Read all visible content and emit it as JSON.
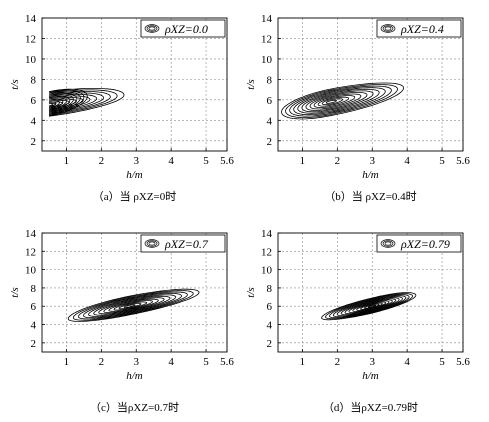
{
  "chart_data": [
    {
      "type": "contour",
      "caption": "（a）当 ρXZ=0时",
      "legend": "ρXZ=0.0",
      "rho": 0.0,
      "xlabel": "h/m",
      "ylabel": "t/s",
      "xlim": [
        0.3,
        5.6
      ],
      "ylim": [
        1,
        14
      ],
      "xticks": [
        "1",
        "2",
        "3",
        "4",
        "5",
        "5.6"
      ],
      "yticks": [
        "2",
        "4",
        "6",
        "8",
        "10",
        "12",
        "14"
      ],
      "grid": true,
      "legend_position": "top-right",
      "peak": {
        "h": 0.5,
        "t": 5.5
      },
      "outer_extent": {
        "h_max": 2.8,
        "t_min": 3.8,
        "t_max": 7.3
      }
    },
    {
      "type": "contour",
      "caption": "（b）当 ρXZ=0.4时",
      "legend": "ρXZ=0.4",
      "rho": 0.4,
      "xlabel": "h/m",
      "ylabel": "t/s",
      "xlim": [
        0.3,
        5.6
      ],
      "ylim": [
        1,
        14
      ],
      "xticks": [
        "1",
        "2",
        "3",
        "4",
        "5",
        "5.6"
      ],
      "yticks": [
        "2",
        "4",
        "6",
        "8",
        "10",
        "12",
        "14"
      ],
      "grid": true,
      "legend_position": "top-right",
      "peak": {
        "h": 1.8,
        "t": 5.8
      },
      "outer_extent": {
        "h_min": 0.4,
        "h_max": 4.0,
        "t_min": 3.6,
        "t_max": 8.4
      }
    },
    {
      "type": "contour",
      "caption": "（c）当ρXZ=0.7时",
      "legend": "ρXZ=0.7",
      "rho": 0.7,
      "xlabel": "h/m",
      "ylabel": "t/s",
      "xlim": [
        0.3,
        5.6
      ],
      "ylim": [
        1,
        14
      ],
      "xticks": [
        "1",
        "2",
        "3",
        "4",
        "5",
        "5.6"
      ],
      "yticks": [
        "2",
        "4",
        "6",
        "8",
        "10",
        "12",
        "14"
      ],
      "grid": true,
      "legend_position": "top-right",
      "peak": {
        "h": 2.8,
        "t": 6.0
      },
      "outer_extent": {
        "h_min": 1.0,
        "h_max": 4.9,
        "t_min": 4.0,
        "t_max": 8.6
      }
    },
    {
      "type": "contour",
      "caption": "（d）当ρXZ=0.79时",
      "legend": "ρXZ=0.79",
      "rho": 0.79,
      "xlabel": "h/m",
      "ylabel": "t/s",
      "xlim": [
        0.3,
        5.6
      ],
      "ylim": [
        1,
        14
      ],
      "xticks": [
        "1",
        "2",
        "3",
        "4",
        "5",
        "5.6"
      ],
      "yticks": [
        "2",
        "4",
        "6",
        "8",
        "10",
        "12",
        "14"
      ],
      "grid": true,
      "legend_position": "top-right",
      "peak": {
        "h": 3.0,
        "t": 6.0
      },
      "outer_extent": {
        "h_min": 1.6,
        "h_max": 4.3,
        "t_min": 4.0,
        "t_max": 8.5
      }
    }
  ]
}
